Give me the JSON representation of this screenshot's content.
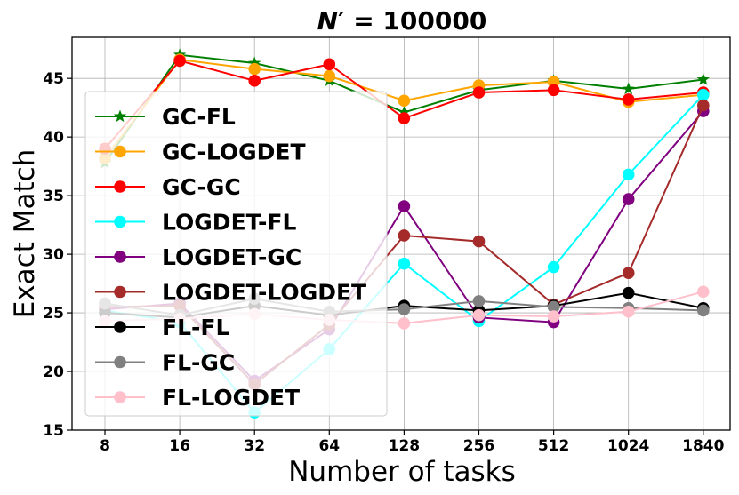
{
  "chart_data": {
    "type": "line",
    "title": "N′ = 100000",
    "title_prefix": "N",
    "title_rest": "′ = 100000",
    "xlabel": "Number of tasks",
    "ylabel": "Exact Match",
    "categories": [
      "8",
      "16",
      "32",
      "64",
      "128",
      "256",
      "512",
      "1024",
      "1840"
    ],
    "yticks": [
      15,
      20,
      25,
      30,
      35,
      40,
      45
    ],
    "ylim": [
      15,
      48.5
    ],
    "grid": true,
    "legend_position": "center-left",
    "series": [
      {
        "name": "GC-FL",
        "color": "#008000",
        "marker": "star",
        "values": [
          37.8,
          47.0,
          46.3,
          44.8,
          42.1,
          44.0,
          44.8,
          44.1,
          44.9
        ]
      },
      {
        "name": "GC-LOGDET",
        "color": "#FFA500",
        "marker": "circle",
        "values": [
          38.2,
          46.6,
          45.8,
          45.2,
          43.1,
          44.4,
          44.7,
          43.0,
          43.6
        ]
      },
      {
        "name": "GC-GC",
        "color": "#FF0000",
        "marker": "circle",
        "values": [
          39.0,
          46.5,
          44.8,
          46.2,
          41.6,
          43.8,
          44.0,
          43.2,
          43.8
        ]
      },
      {
        "name": "LOGDET-FL",
        "color": "#00FFFF",
        "marker": "circle",
        "values": [
          25.2,
          24.2,
          16.5,
          21.9,
          29.2,
          24.3,
          28.9,
          36.8,
          43.6
        ]
      },
      {
        "name": "LOGDET-GC",
        "color": "#800080",
        "marker": "circle",
        "values": [
          25.3,
          25.8,
          19.2,
          23.6,
          34.1,
          24.6,
          24.2,
          34.7,
          42.2
        ]
      },
      {
        "name": "LOGDET-LOGDET",
        "color": "#A52A2A",
        "marker": "circle",
        "values": [
          25.5,
          25.6,
          18.9,
          24.0,
          31.6,
          31.1,
          25.7,
          28.4,
          42.7
        ]
      },
      {
        "name": "FL-FL",
        "color": "#000000",
        "marker": "circle",
        "values": [
          25.0,
          24.6,
          25.6,
          24.8,
          25.6,
          25.2,
          25.6,
          26.7,
          25.4
        ]
      },
      {
        "name": "FL-GC",
        "color": "#808080",
        "marker": "circle",
        "values": [
          25.8,
          24.8,
          26.2,
          25.1,
          25.3,
          26.0,
          25.5,
          25.4,
          25.2
        ]
      },
      {
        "name": "FL-LOGDET",
        "color": "#FFC0CB",
        "marker": "circle",
        "values": [
          24.3,
          24.5,
          24.9,
          24.4,
          24.1,
          24.8,
          24.7,
          25.1,
          26.8
        ]
      }
    ]
  }
}
